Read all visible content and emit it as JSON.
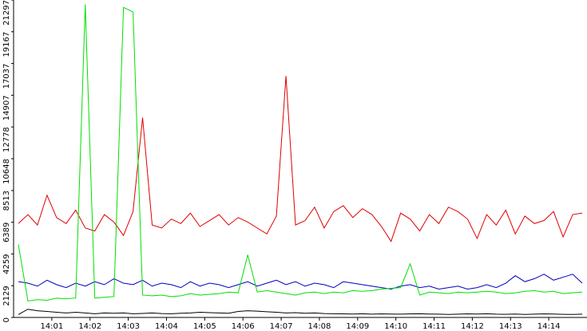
{
  "chart_data": {
    "type": "line",
    "x": [
      0.125,
      0.375,
      0.625,
      0.875,
      1.125,
      1.375,
      1.625,
      1.875,
      2.125,
      2.375,
      2.625,
      2.875,
      3.125,
      3.375,
      3.625,
      3.875,
      4.125,
      4.375,
      4.625,
      4.875,
      5.125,
      5.375,
      5.625,
      5.875,
      6.125,
      6.375,
      6.625,
      6.875,
      7.125,
      7.375,
      7.625,
      7.875,
      8.125,
      8.375,
      8.625,
      8.875,
      9.125,
      9.375,
      9.625,
      9.875,
      10.125,
      10.375,
      10.625,
      10.875,
      11.125,
      11.375,
      11.625,
      11.875,
      12.125,
      12.375,
      12.625,
      12.875,
      13.125,
      13.375,
      13.625,
      13.875,
      14.125,
      14.375,
      14.625,
      14.875
    ],
    "series": [
      {
        "color": "#e00000",
        "values": [
          6300,
          6900,
          6200,
          8200,
          6700,
          6300,
          7200,
          6000,
          5800,
          6900,
          6400,
          5500,
          7100,
          13400,
          6200,
          6000,
          6600,
          6300,
          7000,
          6100,
          6500,
          6900,
          6200,
          6700,
          6400,
          6000,
          5600,
          6800,
          16200,
          6200,
          6500,
          7400,
          6000,
          7100,
          7500,
          6700,
          7300,
          6900,
          6100,
          5100,
          7000,
          6600,
          5800,
          6900,
          6300,
          7400,
          7100,
          6600,
          5300,
          6900,
          6200,
          7200,
          5600,
          6800,
          6300,
          6500,
          7100,
          5400,
          6900,
          7000
        ]
      },
      {
        "color": "#0000c0",
        "values": [
          2400,
          2300,
          2100,
          2500,
          2200,
          2000,
          2300,
          2100,
          2400,
          2200,
          2600,
          2300,
          2200,
          2500,
          2100,
          2300,
          2200,
          2000,
          2400,
          2100,
          2300,
          2200,
          2000,
          2200,
          2400,
          2100,
          2300,
          2500,
          2200,
          2400,
          2100,
          2300,
          2200,
          2000,
          2400,
          2300,
          2200,
          2100,
          2000,
          1900,
          2100,
          2200,
          2000,
          2100,
          1900,
          2000,
          2100,
          1900,
          2000,
          2200,
          2000,
          2300,
          2800,
          2400,
          2600,
          2900,
          2500,
          2700,
          2900,
          2300
        ]
      },
      {
        "color": "#00e000",
        "values": [
          4900,
          1100,
          1200,
          1150,
          1300,
          1250,
          1300,
          21000,
          1300,
          1350,
          1400,
          20800,
          20500,
          1500,
          1450,
          1500,
          1400,
          1450,
          1600,
          1500,
          1550,
          1600,
          1700,
          1650,
          4200,
          1700,
          1800,
          1700,
          1600,
          1500,
          1650,
          1700,
          1600,
          1700,
          1650,
          1800,
          1750,
          1800,
          1900,
          1950,
          2000,
          3600,
          1500,
          1700,
          1650,
          1600,
          1700,
          1650,
          1700,
          1750,
          1700,
          1600,
          1650,
          1750,
          1800,
          1700,
          1750,
          1600,
          1650,
          1700
        ]
      },
      {
        "color": "#000000",
        "values": [
          200,
          550,
          450,
          400,
          350,
          300,
          350,
          300,
          250,
          300,
          280,
          300,
          250,
          270,
          300,
          260,
          250,
          280,
          300,
          350,
          320,
          300,
          280,
          400,
          450,
          420,
          380,
          350,
          300,
          320,
          280,
          300,
          260,
          250,
          240,
          230,
          250,
          220,
          240,
          230,
          220,
          240,
          250,
          230,
          220,
          200,
          220,
          240,
          230,
          250,
          220,
          210,
          230,
          200,
          220,
          240,
          230,
          210,
          200,
          220
        ]
      }
    ],
    "xlim": [
      0,
      15
    ],
    "xticks": [
      {
        "value": 1,
        "label": "14:01"
      },
      {
        "value": 2,
        "label": "14:02"
      },
      {
        "value": 3,
        "label": "14:03"
      },
      {
        "value": 4,
        "label": "14:04"
      },
      {
        "value": 5,
        "label": "14:05"
      },
      {
        "value": 6,
        "label": "14:06"
      },
      {
        "value": 7,
        "label": "14:07"
      },
      {
        "value": 8,
        "label": "14:08"
      },
      {
        "value": 9,
        "label": "14:09"
      },
      {
        "value": 10,
        "label": "14:10"
      },
      {
        "value": 11,
        "label": "14:11"
      },
      {
        "value": 12,
        "label": "14:12"
      },
      {
        "value": 13,
        "label": "14:13"
      },
      {
        "value": 14,
        "label": "14:14"
      }
    ],
    "ylim": [
      0,
      21297
    ],
    "yticks": [
      0,
      2129,
      4259,
      6389,
      8513,
      10648,
      12778,
      14907,
      17037,
      19167,
      21297
    ],
    "grid": false
  }
}
